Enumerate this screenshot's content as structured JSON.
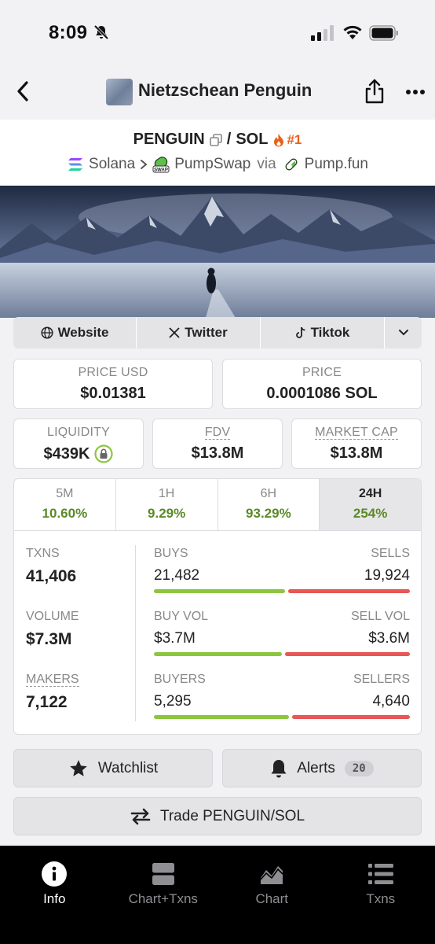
{
  "status_bar": {
    "time": "8:09"
  },
  "header": {
    "title": "Nietzschean Penguin"
  },
  "pair": {
    "base": "PENGUIN",
    "separator": "/",
    "quote": "SOL",
    "rank": "#1",
    "chain": "Solana",
    "dex": "PumpSwap",
    "via": "via",
    "launchpad": "Pump.fun"
  },
  "socials": {
    "website": "Website",
    "twitter": "Twitter",
    "tiktok": "Tiktok"
  },
  "stats": {
    "price_usd_label": "PRICE USD",
    "price_usd": "$0.01381",
    "price_label": "PRICE",
    "price_native": "0.0001086 SOL",
    "liquidity_label": "LIQUIDITY",
    "liquidity": "$439K",
    "fdv_label": "FDV",
    "fdv": "$13.8M",
    "mcap_label": "MARKET CAP",
    "mcap": "$13.8M"
  },
  "timeframes": [
    {
      "label": "5M",
      "change": "10.60%"
    },
    {
      "label": "1H",
      "change": "9.29%"
    },
    {
      "label": "6H",
      "change": "93.29%"
    },
    {
      "label": "24H",
      "change": "254%"
    }
  ],
  "metrics": {
    "txns_label": "TXNS",
    "txns": "41,406",
    "volume_label": "VOLUME",
    "volume": "$7.3M",
    "makers_label": "MAKERS",
    "makers": "7,122",
    "buys_label": "BUYS",
    "buys": "21,482",
    "sells_label": "SELLS",
    "sells": "19,924",
    "buy_vol_label": "BUY VOL",
    "buy_vol": "$3.7M",
    "sell_vol_label": "SELL VOL",
    "sell_vol": "$3.6M",
    "buyers_label": "BUYERS",
    "buyers": "5,295",
    "sellers_label": "SELLERS",
    "sellers": "4,640",
    "buy_share_txns": 0.519,
    "buy_share_vol": 0.507,
    "buy_share_makers": 0.533
  },
  "actions": {
    "watchlist": "Watchlist",
    "alerts": "Alerts",
    "alerts_count": "20",
    "trade": "Trade PENGUIN/SOL"
  },
  "tabbar": [
    {
      "label": "Info",
      "icon": "info-icon",
      "active": true
    },
    {
      "label": "Chart+Txns",
      "icon": "split-view-icon",
      "active": false
    },
    {
      "label": "Chart",
      "icon": "area-chart-icon",
      "active": false
    },
    {
      "label": "Txns",
      "icon": "list-icon",
      "active": false
    }
  ],
  "colors": {
    "positive": "#5a8a26",
    "buy_bar": "#8cc63f",
    "sell_bar": "#e85656",
    "rank": "#e8611a"
  }
}
